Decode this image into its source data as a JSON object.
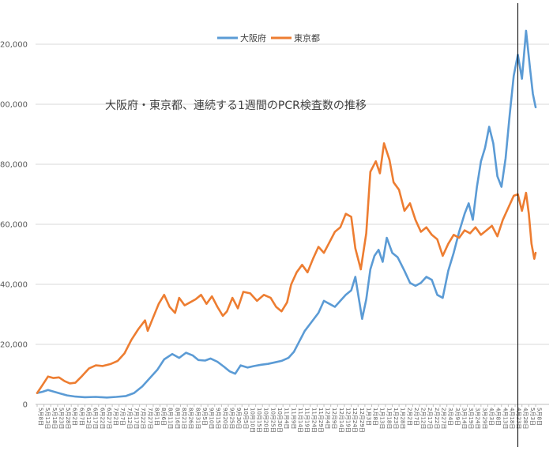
{
  "chart_data": {
    "type": "line",
    "title": "大阪府・東京都、連続する1週間のPCR検査数の推移",
    "legend": {
      "placement": "top-center"
    },
    "ylim": [
      0,
      130000
    ],
    "y_ticks": [
      {
        "value": 0,
        "label": "0"
      },
      {
        "value": 20000,
        "label": "20,000"
      },
      {
        "value": 40000,
        "label": "40,000"
      },
      {
        "value": 60000,
        "label": "60,000"
      },
      {
        "value": 80000,
        "label": "80,000"
      },
      {
        "value": 100000,
        "label": "100,000"
      },
      {
        "value": 120000,
        "label": "120,000"
      }
    ],
    "grid": true,
    "x_range": [
      "2020-05-08",
      "2021-05-08"
    ],
    "x_tick_labels": [
      "5月8日",
      "5月13日",
      "5月18日",
      "5月23日",
      "5月28日",
      "6月2日",
      "6月7日",
      "6月12日",
      "6月17日",
      "6月22日",
      "6月27日",
      "7月2日",
      "7月7日",
      "7月12日",
      "7月17日",
      "7月22日",
      "7月27日",
      "8月1日",
      "8月6日",
      "8月11日",
      "8月16日",
      "8月21日",
      "8月26日",
      "8月31日",
      "9月5日",
      "9月10日",
      "9月15日",
      "9月20日",
      "9月25日",
      "9月30日",
      "10月5日",
      "10月10日",
      "10月15日",
      "10月20日",
      "10月25日",
      "10月30日",
      "11月4日",
      "11月9日",
      "11月14日",
      "11月19日",
      "11月24日",
      "11月29日",
      "12月4日",
      "12月9日",
      "12月14日",
      "12月19日",
      "12月24日",
      "12月29日",
      "1月3日",
      "1月8日",
      "1月13日",
      "1月18日",
      "1月23日",
      "1月28日",
      "2月2日",
      "2月7日",
      "2月12日",
      "2月17日",
      "2月22日",
      "2月27日",
      "3月4日",
      "3月9日",
      "3月14日",
      "3月19日",
      "3月24日",
      "3月29日",
      "4月3日",
      "4月8日",
      "4月13日",
      "4月18日",
      "4月23日",
      "4月28日",
      "5月3日",
      "5月8日"
    ],
    "marker_line": {
      "date": "2021-04-25"
    },
    "series": [
      {
        "name": "大阪府",
        "color": "#5B9BD5",
        "points": [
          [
            "2020-05-08",
            3800
          ],
          [
            "2020-05-12",
            4200
          ],
          [
            "2020-05-16",
            4800
          ],
          [
            "2020-05-20",
            4300
          ],
          [
            "2020-05-25",
            3600
          ],
          [
            "2020-05-30",
            3000
          ],
          [
            "2020-06-05",
            2600
          ],
          [
            "2020-06-12",
            2400
          ],
          [
            "2020-06-20",
            2500
          ],
          [
            "2020-06-28",
            2300
          ],
          [
            "2020-07-05",
            2500
          ],
          [
            "2020-07-12",
            2800
          ],
          [
            "2020-07-18",
            3800
          ],
          [
            "2020-07-24",
            6000
          ],
          [
            "2020-07-30",
            9000
          ],
          [
            "2020-08-04",
            11500
          ],
          [
            "2020-08-09",
            15000
          ],
          [
            "2020-08-15",
            16800
          ],
          [
            "2020-08-20",
            15500
          ],
          [
            "2020-08-25",
            17200
          ],
          [
            "2020-08-30",
            16300
          ],
          [
            "2020-09-03",
            14800
          ],
          [
            "2020-09-08",
            14600
          ],
          [
            "2020-09-12",
            15300
          ],
          [
            "2020-09-17",
            14200
          ],
          [
            "2020-09-22",
            12500
          ],
          [
            "2020-09-26",
            11000
          ],
          [
            "2020-09-30",
            10200
          ],
          [
            "2020-10-04",
            13000
          ],
          [
            "2020-10-09",
            12300
          ],
          [
            "2020-10-14",
            12800
          ],
          [
            "2020-10-19",
            13200
          ],
          [
            "2020-10-24",
            13500
          ],
          [
            "2020-10-29",
            14000
          ],
          [
            "2020-11-03",
            14500
          ],
          [
            "2020-11-08",
            15500
          ],
          [
            "2020-11-12",
            17500
          ],
          [
            "2020-11-16",
            21000
          ],
          [
            "2020-11-20",
            24500
          ],
          [
            "2020-11-25",
            27500
          ],
          [
            "2020-11-30",
            30500
          ],
          [
            "2020-12-04",
            34500
          ],
          [
            "2020-12-08",
            33500
          ],
          [
            "2020-12-12",
            32500
          ],
          [
            "2020-12-16",
            34500
          ],
          [
            "2020-12-20",
            36500
          ],
          [
            "2020-12-24",
            38000
          ],
          [
            "2020-12-27",
            42500
          ],
          [
            "2020-12-30",
            34000
          ],
          [
            "2021-01-01",
            28500
          ],
          [
            "2021-01-04",
            35000
          ],
          [
            "2021-01-07",
            45000
          ],
          [
            "2021-01-10",
            49500
          ],
          [
            "2021-01-13",
            51500
          ],
          [
            "2021-01-16",
            47500
          ],
          [
            "2021-01-19",
            55500
          ],
          [
            "2021-01-23",
            50500
          ],
          [
            "2021-01-27",
            49000
          ],
          [
            "2021-02-01",
            44500
          ],
          [
            "2021-02-05",
            40500
          ],
          [
            "2021-02-09",
            39500
          ],
          [
            "2021-02-13",
            40500
          ],
          [
            "2021-02-17",
            42500
          ],
          [
            "2021-02-21",
            41500
          ],
          [
            "2021-02-25",
            36500
          ],
          [
            "2021-03-01",
            35500
          ],
          [
            "2021-03-05",
            44500
          ],
          [
            "2021-03-09",
            50500
          ],
          [
            "2021-03-13",
            57500
          ],
          [
            "2021-03-17",
            63500
          ],
          [
            "2021-03-20",
            67000
          ],
          [
            "2021-03-23",
            61500
          ],
          [
            "2021-03-26",
            72500
          ],
          [
            "2021-03-29",
            81000
          ],
          [
            "2021-04-01",
            85500
          ],
          [
            "2021-04-04",
            92500
          ],
          [
            "2021-04-07",
            87000
          ],
          [
            "2021-04-10",
            76000
          ],
          [
            "2021-04-13",
            72500
          ],
          [
            "2021-04-16",
            82000
          ],
          [
            "2021-04-19",
            96500
          ],
          [
            "2021-04-22",
            109500
          ],
          [
            "2021-04-25",
            116500
          ],
          [
            "2021-04-28",
            108500
          ],
          [
            "2021-05-01",
            124500
          ],
          [
            "2021-05-04",
            111500
          ],
          [
            "2021-05-06",
            103500
          ],
          [
            "2021-05-08",
            99000
          ]
        ]
      },
      {
        "name": "東京都",
        "color": "#ED7D31",
        "points": [
          [
            "2020-05-08",
            3800
          ],
          [
            "2020-05-12",
            6500
          ],
          [
            "2020-05-16",
            9300
          ],
          [
            "2020-05-20",
            8800
          ],
          [
            "2020-05-24",
            9000
          ],
          [
            "2020-05-28",
            7800
          ],
          [
            "2020-06-01",
            7000
          ],
          [
            "2020-06-05",
            7200
          ],
          [
            "2020-06-10",
            9500
          ],
          [
            "2020-06-15",
            12000
          ],
          [
            "2020-06-20",
            13000
          ],
          [
            "2020-06-25",
            12800
          ],
          [
            "2020-07-01",
            13500
          ],
          [
            "2020-07-06",
            14500
          ],
          [
            "2020-07-11",
            17000
          ],
          [
            "2020-07-16",
            21500
          ],
          [
            "2020-07-21",
            25000
          ],
          [
            "2020-07-26",
            28000
          ],
          [
            "2020-07-28",
            24500
          ],
          [
            "2020-08-01",
            29000
          ],
          [
            "2020-08-05",
            33500
          ],
          [
            "2020-08-09",
            36500
          ],
          [
            "2020-08-13",
            32500
          ],
          [
            "2020-08-17",
            30500
          ],
          [
            "2020-08-20",
            35500
          ],
          [
            "2020-08-24",
            33000
          ],
          [
            "2020-08-28",
            34000
          ],
          [
            "2020-09-01",
            35000
          ],
          [
            "2020-09-05",
            36500
          ],
          [
            "2020-09-09",
            33500
          ],
          [
            "2020-09-13",
            36000
          ],
          [
            "2020-09-17",
            32500
          ],
          [
            "2020-09-21",
            29500
          ],
          [
            "2020-09-24",
            31000
          ],
          [
            "2020-09-28",
            35500
          ],
          [
            "2020-10-02",
            32000
          ],
          [
            "2020-10-06",
            37500
          ],
          [
            "2020-10-11",
            37000
          ],
          [
            "2020-10-16",
            34500
          ],
          [
            "2020-10-21",
            36500
          ],
          [
            "2020-10-26",
            35500
          ],
          [
            "2020-10-30",
            32500
          ],
          [
            "2020-11-03",
            31000
          ],
          [
            "2020-11-07",
            34000
          ],
          [
            "2020-11-10",
            40000
          ],
          [
            "2020-11-14",
            44000
          ],
          [
            "2020-11-18",
            46500
          ],
          [
            "2020-11-22",
            44000
          ],
          [
            "2020-11-26",
            48500
          ],
          [
            "2020-11-30",
            52500
          ],
          [
            "2020-12-04",
            50500
          ],
          [
            "2020-12-08",
            54000
          ],
          [
            "2020-12-12",
            57500
          ],
          [
            "2020-12-16",
            59000
          ],
          [
            "2020-12-20",
            63500
          ],
          [
            "2020-12-24",
            62500
          ],
          [
            "2020-12-27",
            52000
          ],
          [
            "2020-12-31",
            45000
          ],
          [
            "2021-01-04",
            57000
          ],
          [
            "2021-01-07",
            77500
          ],
          [
            "2021-01-11",
            81000
          ],
          [
            "2021-01-14",
            77000
          ],
          [
            "2021-01-17",
            87000
          ],
          [
            "2021-01-21",
            81500
          ],
          [
            "2021-01-24",
            74000
          ],
          [
            "2021-01-28",
            71500
          ],
          [
            "2021-02-01",
            64500
          ],
          [
            "2021-02-05",
            67000
          ],
          [
            "2021-02-09",
            61500
          ],
          [
            "2021-02-13",
            57500
          ],
          [
            "2021-02-17",
            59000
          ],
          [
            "2021-02-21",
            56500
          ],
          [
            "2021-02-25",
            55000
          ],
          [
            "2021-03-01",
            49500
          ],
          [
            "2021-03-05",
            53500
          ],
          [
            "2021-03-09",
            56500
          ],
          [
            "2021-03-13",
            55500
          ],
          [
            "2021-03-17",
            58000
          ],
          [
            "2021-03-21",
            57000
          ],
          [
            "2021-03-25",
            59000
          ],
          [
            "2021-03-29",
            56500
          ],
          [
            "2021-04-02",
            58000
          ],
          [
            "2021-04-06",
            59500
          ],
          [
            "2021-04-10",
            56000
          ],
          [
            "2021-04-14",
            61500
          ],
          [
            "2021-04-18",
            65500
          ],
          [
            "2021-04-22",
            69500
          ],
          [
            "2021-04-25",
            70000
          ],
          [
            "2021-04-28",
            64500
          ],
          [
            "2021-05-01",
            70500
          ],
          [
            "2021-05-03",
            63500
          ],
          [
            "2021-05-05",
            53500
          ],
          [
            "2021-05-07",
            48500
          ],
          [
            "2021-05-08",
            50500
          ]
        ]
      }
    ]
  }
}
